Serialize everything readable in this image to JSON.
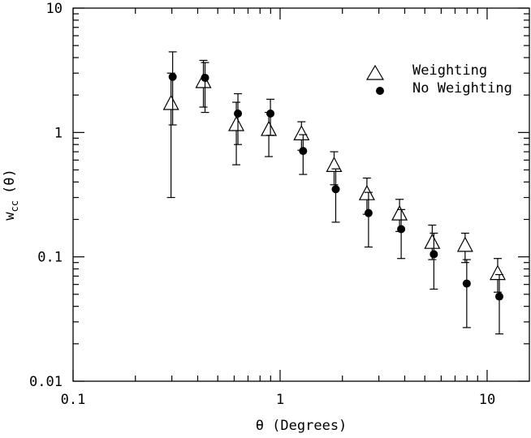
{
  "chart_data": {
    "type": "scatter",
    "title": "",
    "xlabel": "θ (Degrees)",
    "ylabel_main": "w",
    "ylabel_sub": "cc",
    "ylabel_arg": "(θ)",
    "xscale": "log",
    "yscale": "log",
    "xlim": [
      0.1,
      16
    ],
    "ylim": [
      0.01,
      10
    ],
    "grid": false,
    "legend_position": "top-right",
    "x_ticks": [
      {
        "value": 0.1,
        "label": "0.1"
      },
      {
        "value": 1,
        "label": "1"
      },
      {
        "value": 10,
        "label": "10"
      }
    ],
    "y_ticks": [
      {
        "value": 0.01,
        "label": "0.01"
      },
      {
        "value": 0.1,
        "label": "0.1"
      },
      {
        "value": 1,
        "label": "1"
      },
      {
        "value": 10,
        "label": "10"
      }
    ],
    "series": [
      {
        "name": "Weighting",
        "marker": "open-triangle",
        "points": [
          {
            "x": 0.3,
            "y": 1.7,
            "y_lo": 0.3,
            "y_hi": 3.0
          },
          {
            "x": 0.43,
            "y": 2.55,
            "y_lo": 1.6,
            "y_hi": 3.8
          },
          {
            "x": 0.62,
            "y": 1.15,
            "y_lo": 0.55,
            "y_hi": 1.75
          },
          {
            "x": 0.89,
            "y": 1.05,
            "y_lo": 0.64,
            "y_hi": 1.45
          },
          {
            "x": 1.28,
            "y": 0.97,
            "y_lo": 0.72,
            "y_hi": 1.22
          },
          {
            "x": 1.84,
            "y": 0.54,
            "y_lo": 0.38,
            "y_hi": 0.7
          },
          {
            "x": 2.65,
            "y": 0.32,
            "y_lo": 0.22,
            "y_hi": 0.43
          },
          {
            "x": 3.81,
            "y": 0.22,
            "y_lo": 0.16,
            "y_hi": 0.29
          },
          {
            "x": 5.48,
            "y": 0.13,
            "y_lo": 0.095,
            "y_hi": 0.18
          },
          {
            "x": 7.9,
            "y": 0.123,
            "y_lo": 0.09,
            "y_hi": 0.155
          },
          {
            "x": 11.35,
            "y": 0.073,
            "y_lo": 0.052,
            "y_hi": 0.097
          }
        ]
      },
      {
        "name": "No Weighting",
        "marker": "filled-circle",
        "points": [
          {
            "x": 0.3,
            "y": 2.8,
            "y_lo": 1.15,
            "y_hi": 4.45
          },
          {
            "x": 0.43,
            "y": 2.75,
            "y_lo": 1.45,
            "y_hi": 3.65
          },
          {
            "x": 0.62,
            "y": 1.42,
            "y_lo": 0.8,
            "y_hi": 2.05
          },
          {
            "x": 0.89,
            "y": 1.42,
            "y_lo": 0.95,
            "y_hi": 1.85
          },
          {
            "x": 1.28,
            "y": 0.71,
            "y_lo": 0.46,
            "y_hi": 0.96
          },
          {
            "x": 1.84,
            "y": 0.35,
            "y_lo": 0.19,
            "y_hi": 0.51
          },
          {
            "x": 2.65,
            "y": 0.225,
            "y_lo": 0.12,
            "y_hi": 0.33
          },
          {
            "x": 3.81,
            "y": 0.167,
            "y_lo": 0.097,
            "y_hi": 0.24
          },
          {
            "x": 5.48,
            "y": 0.105,
            "y_lo": 0.055,
            "y_hi": 0.155
          },
          {
            "x": 7.9,
            "y": 0.061,
            "y_lo": 0.027,
            "y_hi": 0.095
          },
          {
            "x": 11.35,
            "y": 0.048,
            "y_lo": 0.024,
            "y_hi": 0.072
          }
        ]
      }
    ]
  }
}
